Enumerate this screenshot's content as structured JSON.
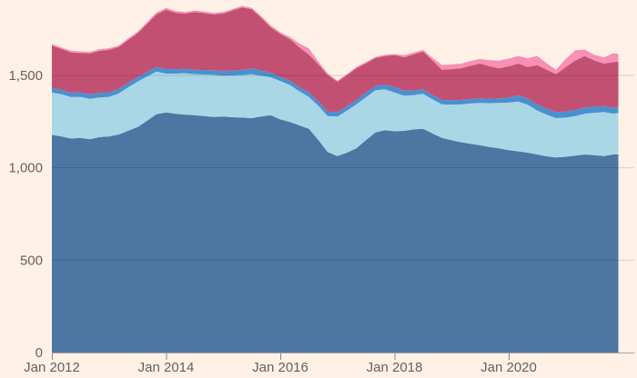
{
  "colors": {
    "background": "#FFF1E5",
    "label_text": "#66605C",
    "gridline": "rgba(0,0,0,0.14)",
    "axis_line": "rgba(102,96,92,0.55)",
    "tick_mark": "rgba(102,96,92,0.75)"
  },
  "chart_data": {
    "type": "area",
    "stacked": true,
    "title": "",
    "xlabel": "",
    "ylabel": "",
    "legend": "none",
    "grid": "horizontal",
    "ylim": [
      0,
      1908
    ],
    "xlim_years": [
      2012.0,
      2021.92
    ],
    "yticks": [
      {
        "value": 0,
        "label": "0"
      },
      {
        "value": 500,
        "label": "500"
      },
      {
        "value": 1000,
        "label": "1,000"
      },
      {
        "value": 1500,
        "label": "1,500"
      }
    ],
    "xticks": [
      {
        "year": 2012,
        "label": "Jan 2012"
      },
      {
        "year": 2014,
        "label": "Jan 2014"
      },
      {
        "year": 2016,
        "label": "Jan 2016"
      },
      {
        "year": 2018,
        "label": "Jan 2018"
      },
      {
        "year": 2020,
        "label": "Jan 2020"
      }
    ],
    "x_years": [
      2012.0,
      2012.17,
      2012.33,
      2012.5,
      2012.67,
      2012.83,
      2013.0,
      2013.17,
      2013.33,
      2013.5,
      2013.67,
      2013.83,
      2014.0,
      2014.17,
      2014.33,
      2014.5,
      2014.67,
      2014.83,
      2015.0,
      2015.17,
      2015.33,
      2015.5,
      2015.67,
      2015.83,
      2016.0,
      2016.17,
      2016.33,
      2016.5,
      2016.67,
      2016.83,
      2017.0,
      2017.17,
      2017.33,
      2017.5,
      2017.67,
      2017.83,
      2018.0,
      2018.17,
      2018.33,
      2018.5,
      2018.67,
      2018.83,
      2019.0,
      2019.17,
      2019.33,
      2019.5,
      2019.67,
      2019.83,
      2020.0,
      2020.17,
      2020.33,
      2020.5,
      2020.67,
      2020.83,
      2021.0,
      2021.17,
      2021.33,
      2021.5,
      2021.67,
      2021.83,
      2021.92
    ],
    "series": [
      {
        "name": "steel-blue-base",
        "color": "#4D76A3",
        "values": [
          1178,
          1170,
          1158,
          1162,
          1155,
          1166,
          1170,
          1180,
          1200,
          1220,
          1255,
          1290,
          1300,
          1292,
          1288,
          1285,
          1280,
          1275,
          1277,
          1274,
          1272,
          1269,
          1278,
          1285,
          1262,
          1248,
          1230,
          1211,
          1150,
          1085,
          1064,
          1082,
          1105,
          1150,
          1192,
          1203,
          1198,
          1200,
          1208,
          1211,
          1185,
          1162,
          1150,
          1138,
          1130,
          1122,
          1112,
          1105,
          1095,
          1089,
          1082,
          1072,
          1062,
          1056,
          1060,
          1066,
          1072,
          1068,
          1064,
          1072,
          1072
        ]
      },
      {
        "name": "light-blue",
        "color": "#A9D7E6",
        "values": [
          230,
          228,
          225,
          222,
          218,
          215,
          214,
          222,
          235,
          246,
          240,
          231,
          210,
          218,
          224,
          222,
          225,
          228,
          221,
          226,
          230,
          238,
          220,
          205,
          208,
          200,
          185,
          173,
          185,
          195,
          213,
          228,
          238,
          232,
          228,
          222,
          210,
          190,
          185,
          189,
          185,
          181,
          192,
          205,
          218,
          229,
          238,
          246,
          258,
          270,
          260,
          238,
          225,
          213,
          212,
          214,
          221,
          230,
          238,
          221,
          225
        ]
      },
      {
        "name": "mid-blue-band",
        "color": "#4A90D0",
        "values": [
          25,
          25,
          24,
          24,
          24,
          24,
          24,
          24,
          24,
          24,
          25,
          25,
          25,
          24,
          24,
          24,
          24,
          25,
          25,
          27,
          28,
          32,
          28,
          25,
          22,
          23,
          23,
          24,
          24,
          24,
          25,
          24,
          24,
          24,
          25,
          24,
          30,
          28,
          25,
          25,
          24,
          24,
          24,
          24,
          24,
          24,
          24,
          24,
          28,
          33,
          33,
          33,
          33,
          33,
          33,
          33,
          33,
          33,
          32,
          33,
          33
        ]
      },
      {
        "name": "rose",
        "color": "#C25073",
        "values": [
          229,
          220,
          218,
          213,
          222,
          228,
          230,
          228,
          232,
          238,
          260,
          284,
          320,
          305,
          298,
          312,
          308,
          302,
          312,
          325,
          338,
          320,
          285,
          246,
          233,
          225,
          215,
          205,
          200,
          198,
          164,
          168,
          172,
          160,
          150,
          156,
          172,
          180,
          195,
          205,
          185,
          164,
          168,
          172,
          180,
          189,
          175,
          163,
          168,
          172,
          170,
          213,
          210,
          205,
          240,
          268,
          279,
          250,
          230,
          246,
          245
        ]
      },
      {
        "name": "pink",
        "color": "#F88FB5",
        "values": [
          8,
          8,
          9,
          9,
          9,
          9,
          9,
          8,
          8,
          8,
          9,
          10,
          10,
          9,
          9,
          8,
          8,
          8,
          8,
          8,
          8,
          7,
          9,
          10,
          8,
          12,
          20,
          33,
          15,
          9,
          6,
          6,
          6,
          6,
          6,
          6,
          6,
          12,
          10,
          8,
          15,
          25,
          25,
          25,
          25,
          25,
          33,
          42,
          42,
          41,
          48,
          49,
          35,
          24,
          45,
          55,
          35,
          30,
          33,
          48,
          42
        ]
      }
    ]
  }
}
